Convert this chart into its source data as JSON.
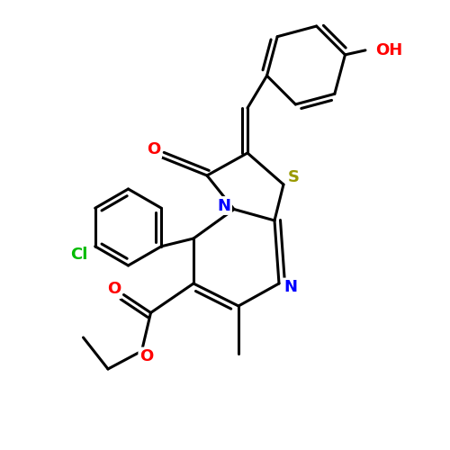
{
  "background_color": "#ffffff",
  "bond_color": "#000000",
  "bond_width": 2.2,
  "figsize": [
    5.0,
    5.0
  ],
  "dpi": 100,
  "xlim": [
    0,
    10
  ],
  "ylim": [
    0,
    10
  ],
  "colors": {
    "O": "#ff0000",
    "N": "#0000ff",
    "S": "#999900",
    "Cl": "#00bb00",
    "bond": "#000000"
  }
}
